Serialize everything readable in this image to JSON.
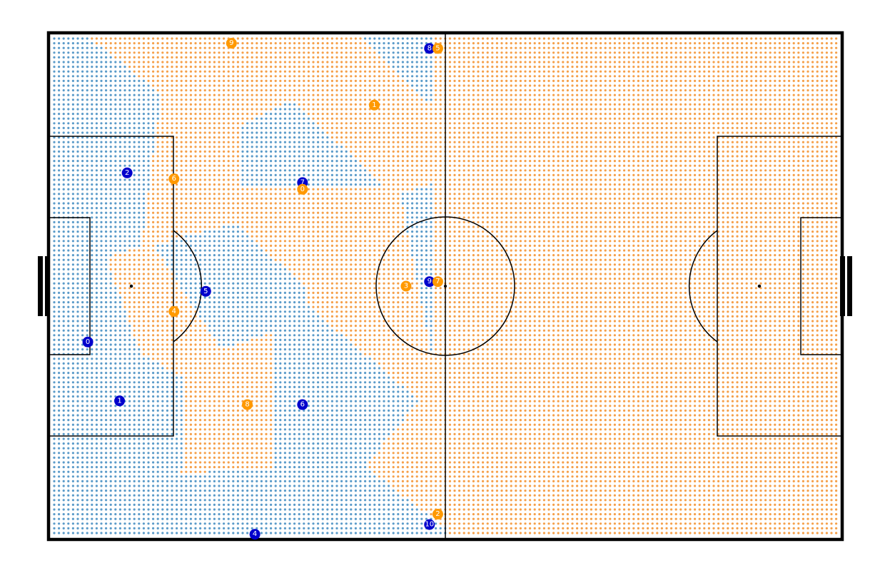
{
  "chart_data": {
    "type": "scatter",
    "title": "",
    "xlabel": "",
    "ylabel": "",
    "xlim": [
      -52.5,
      52.5
    ],
    "ylim": [
      -34,
      34
    ],
    "grid": false,
    "colors": {
      "team_blue": "#0000cc",
      "team_orange": "#ff9900",
      "control_blue": "#5b9bc9",
      "control_orange": "#f5a04a",
      "lines": "#000000"
    },
    "series": [
      {
        "team": "blue",
        "players": [
          {
            "label": "0",
            "x": -47.3,
            "y": -7.5
          },
          {
            "label": "1",
            "x": -43.1,
            "y": -15.4
          },
          {
            "label": "2",
            "x": -42.1,
            "y": 15.2
          },
          {
            "label": "4",
            "x": -25.2,
            "y": -33.3
          },
          {
            "label": "5",
            "x": -31.7,
            "y": -0.7
          },
          {
            "label": "6",
            "x": -18.9,
            "y": -15.9
          },
          {
            "label": "7",
            "x": -18.9,
            "y": 13.9
          },
          {
            "label": "8",
            "x": -2.1,
            "y": 31.9
          },
          {
            "label": "9",
            "x": -2.1,
            "y": 0.6
          },
          {
            "label": "10",
            "x": -2.1,
            "y": -32.0
          }
        ]
      },
      {
        "team": "orange",
        "players": [
          {
            "label": "0",
            "x": -18.9,
            "y": 13.0
          },
          {
            "label": "1",
            "x": -9.4,
            "y": 24.3
          },
          {
            "label": "2",
            "x": -1.0,
            "y": -30.6
          },
          {
            "label": "3",
            "x": -5.2,
            "y": 0.0
          },
          {
            "label": "4",
            "x": -35.9,
            "y": -3.4
          },
          {
            "label": "5",
            "x": -1.0,
            "y": 31.9
          },
          {
            "label": "6",
            "x": -35.9,
            "y": 14.4
          },
          {
            "label": "7",
            "x": -1.0,
            "y": 0.6
          },
          {
            "label": "8",
            "x": -26.2,
            "y": -15.9
          },
          {
            "label": "9",
            "x": -28.3,
            "y": 32.6
          }
        ]
      }
    ]
  }
}
